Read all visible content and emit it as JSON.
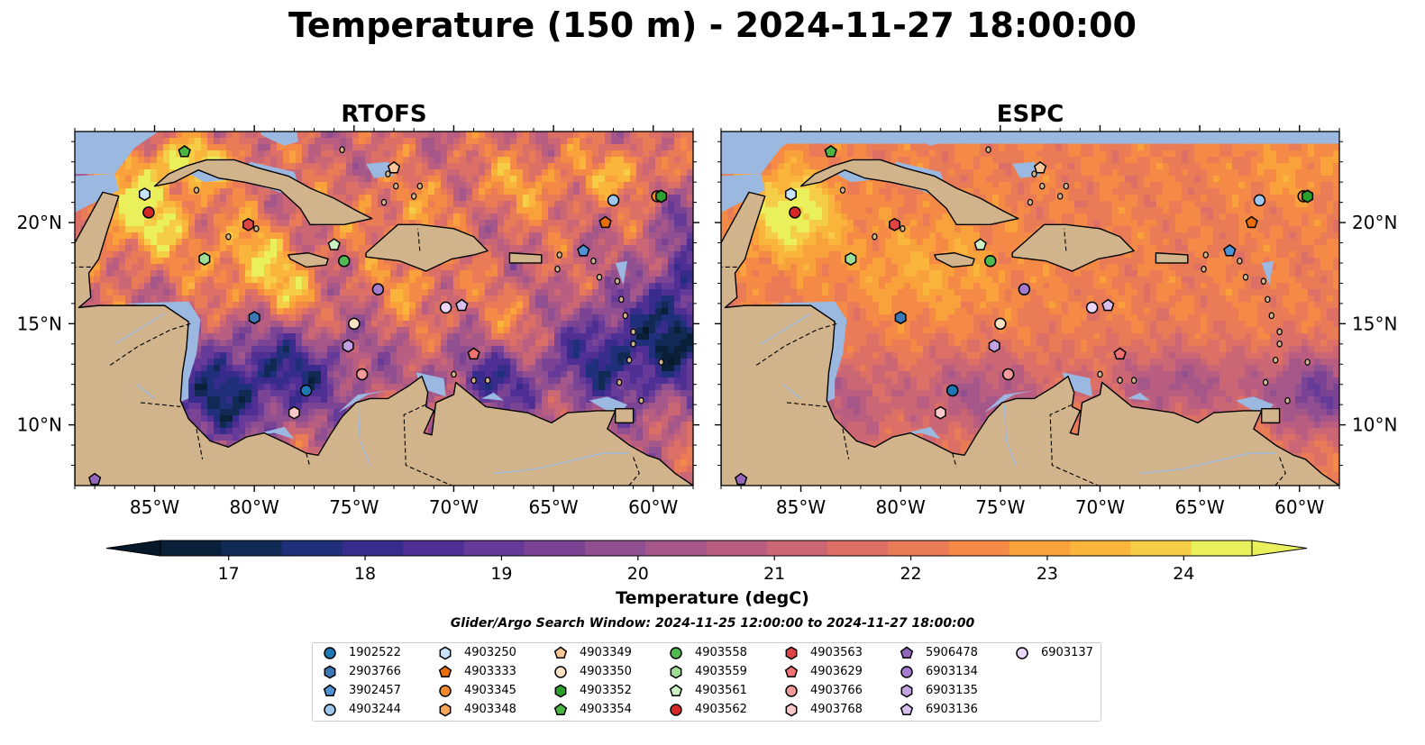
{
  "title": "Temperature (150 m) - 2024-11-27 18:00:00",
  "panels": [
    {
      "title": "RTOFS",
      "style": "rtofs"
    },
    {
      "title": "ESPC",
      "style": "espc"
    }
  ],
  "map": {
    "lon_range": [
      -89,
      -58
    ],
    "lat_range": [
      7,
      24.5
    ],
    "lon_ticks": [
      -85,
      -80,
      -75,
      -70,
      -65,
      -60
    ],
    "lon_tick_labels": [
      "85°W",
      "80°W",
      "75°W",
      "70°W",
      "65°W",
      "60°W"
    ],
    "lat_ticks": [
      10,
      15,
      20
    ],
    "lat_tick_labels": [
      "10°N",
      "15°N",
      "20°N"
    ],
    "colors": {
      "land": "#d2b48c",
      "shelf": "#9ab8e0",
      "coast": "#000000"
    }
  },
  "colorbar": {
    "vmin": 16.5,
    "vmax": 24.5,
    "ticks": [
      17,
      18,
      19,
      20,
      21,
      22,
      23,
      24
    ],
    "tick_labels": [
      "17",
      "18",
      "19",
      "20",
      "21",
      "22",
      "23",
      "24"
    ],
    "label": "Temperature (degC)",
    "colors": [
      "#0a1f38",
      "#102a55",
      "#1f2f7a",
      "#372c8c",
      "#4f2f94",
      "#653a99",
      "#7a4394",
      "#904f90",
      "#a5578a",
      "#b95e80",
      "#cb6775",
      "#dc6f66",
      "#ea7b57",
      "#f58a46",
      "#f9a13a",
      "#fab63c",
      "#f6cd47",
      "#e9f05c"
    ],
    "under_color": "#06182a",
    "over_color": "#e9f05c"
  },
  "search_window": "Glider/Argo Search Window: 2024-11-25 12:00:00 to 2024-11-27 18:00:00",
  "floats": [
    {
      "id": "1902522",
      "marker": "circle",
      "color": "#1f77b4",
      "lon": -77.4,
      "lat": 11.7
    },
    {
      "id": "2903766",
      "marker": "hexagon",
      "color": "#3a78b8",
      "lon": -80.0,
      "lat": 15.3
    },
    {
      "id": "3902457",
      "marker": "pentagon",
      "color": "#4f93d6",
      "lon": -63.5,
      "lat": 18.6
    },
    {
      "id": "4903244",
      "marker": "circle",
      "color": "#9ec8ee",
      "lon": -62.0,
      "lat": 21.1
    },
    {
      "id": "4903250",
      "marker": "hexagon",
      "color": "#c6e3fb",
      "lon": -85.5,
      "lat": 21.4
    },
    {
      "id": "4903333",
      "marker": "pentagon",
      "color": "#e86f0a",
      "lon": -62.4,
      "lat": 20.0
    },
    {
      "id": "4903345",
      "marker": "circle",
      "color": "#f08a2c",
      "lon": -59.8,
      "lat": 21.3
    },
    {
      "id": "4903348",
      "marker": "hexagon",
      "color": "#f6a55a",
      "lon": -59.6,
      "lat": 21.3
    },
    {
      "id": "4903349",
      "marker": "pentagon",
      "color": "#fbc79a",
      "lon": -73.0,
      "lat": 22.7
    },
    {
      "id": "4903350",
      "marker": "circle",
      "color": "#fde1c3",
      "lon": -75.0,
      "lat": 15.0
    },
    {
      "id": "4903352",
      "marker": "hexagon",
      "color": "#2ca02c",
      "lon": -59.6,
      "lat": 21.3
    },
    {
      "id": "4903354",
      "marker": "pentagon",
      "color": "#4bb543",
      "lon": -83.5,
      "lat": 23.5
    },
    {
      "id": "4903558",
      "marker": "circle",
      "color": "#4fba4f",
      "lon": -75.5,
      "lat": 18.1
    },
    {
      "id": "4903559",
      "marker": "hexagon",
      "color": "#9fdf94",
      "lon": -82.5,
      "lat": 18.2
    },
    {
      "id": "4903561",
      "marker": "pentagon",
      "color": "#cdf3c4",
      "lon": -76.0,
      "lat": 18.9
    },
    {
      "id": "4903562",
      "marker": "circle",
      "color": "#d62728",
      "lon": -85.3,
      "lat": 20.5
    },
    {
      "id": "4903563",
      "marker": "hexagon",
      "color": "#e04545",
      "lon": -80.3,
      "lat": 19.9
    },
    {
      "id": "4903629",
      "marker": "pentagon",
      "color": "#f07272",
      "lon": -69.0,
      "lat": 13.5
    },
    {
      "id": "4903766",
      "marker": "circle",
      "color": "#f49a9a",
      "lon": -74.6,
      "lat": 12.5
    },
    {
      "id": "4903768",
      "marker": "hexagon",
      "color": "#f9c9c9",
      "lon": -78.0,
      "lat": 10.6
    },
    {
      "id": "5906478",
      "marker": "pentagon",
      "color": "#9467bd",
      "lon": -88.0,
      "lat": 7.3
    },
    {
      "id": "6903134",
      "marker": "circle",
      "color": "#a57bcf",
      "lon": -73.8,
      "lat": 16.7
    },
    {
      "id": "6903135",
      "marker": "hexagon",
      "color": "#c3a2e3",
      "lon": -75.3,
      "lat": 13.9
    },
    {
      "id": "6903136",
      "marker": "pentagon",
      "color": "#d8bff0",
      "lon": -69.6,
      "lat": 15.9
    },
    {
      "id": "6903137",
      "marker": "circle",
      "color": "#ead7fb",
      "lon": -70.4,
      "lat": 15.8
    }
  ]
}
